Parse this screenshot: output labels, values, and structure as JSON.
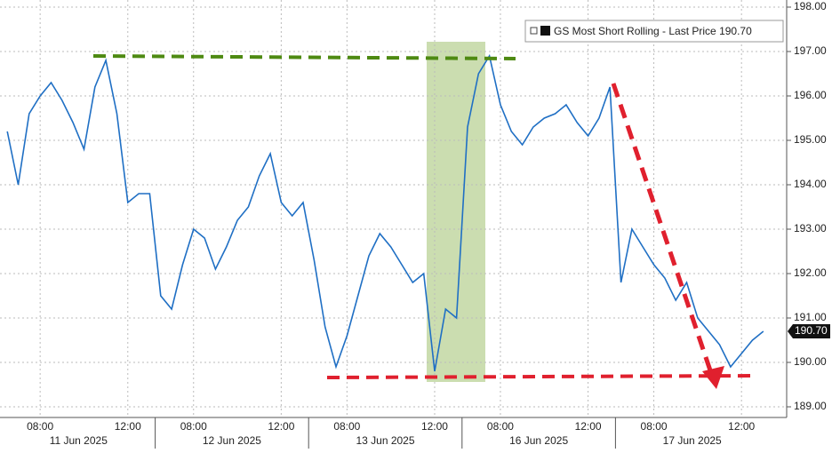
{
  "chart_data": {
    "type": "line",
    "categories": [
      null,
      null,
      null,
      "08:00",
      null,
      null,
      null,
      null,
      null,
      null,
      null,
      "12:00",
      null,
      null,
      null,
      null,
      null,
      "08:00",
      null,
      null,
      null,
      null,
      null,
      null,
      null,
      "12:00",
      null,
      null,
      null,
      null,
      null,
      "08:00",
      null,
      null,
      null,
      null,
      null,
      null,
      null,
      "12:00",
      null,
      null,
      null,
      null,
      null,
      "08:00",
      null,
      null,
      null,
      null,
      null,
      null,
      null,
      "12:00",
      null,
      null,
      null,
      null,
      null,
      "08:00",
      null,
      null,
      null,
      null,
      null,
      null,
      null,
      "12:00",
      null,
      null
    ],
    "date_labels": [
      "11 Jun 2025",
      "12 Jun 2025",
      "13 Jun 2025",
      "16 Jun 2025",
      "17 Jun 2025"
    ],
    "series": [
      {
        "name": "GS Most Short Rolling - Last Price",
        "color": "#1f6fc4",
        "values": [
          195.2,
          194.0,
          195.6,
          196.0,
          196.3,
          195.9,
          195.4,
          194.8,
          196.2,
          196.8,
          195.6,
          193.6,
          193.8,
          193.8,
          191.5,
          191.2,
          192.2,
          193.0,
          192.8,
          192.1,
          192.6,
          193.2,
          193.5,
          194.2,
          194.7,
          193.6,
          193.3,
          193.6,
          192.3,
          190.8,
          189.9,
          190.6,
          191.5,
          192.4,
          192.9,
          192.6,
          192.2,
          191.8,
          192.0,
          189.8,
          191.2,
          191.0,
          195.3,
          196.5,
          196.9,
          195.8,
          195.2,
          194.9,
          195.3,
          195.5,
          195.6,
          195.8,
          195.4,
          195.1,
          195.5,
          196.2,
          191.8,
          193.0,
          192.6,
          192.2,
          191.9,
          191.4,
          191.8,
          191.0,
          190.7,
          190.4,
          189.9,
          190.2,
          190.5,
          190.7
        ]
      }
    ],
    "last_price_label": "190.70",
    "ylim": [
      188.76,
      198.16
    ],
    "yticks": [
      {
        "value": 189,
        "label": "189.00"
      },
      {
        "value": 190,
        "label": "190.00"
      },
      {
        "value": 191,
        "label": "191.00"
      },
      {
        "value": 192,
        "label": "192.00"
      },
      {
        "value": 193,
        "label": "193.00"
      },
      {
        "value": 194,
        "label": "194.00"
      },
      {
        "value": 195,
        "label": "195.00"
      },
      {
        "value": 196,
        "label": "196.00"
      },
      {
        "value": 197,
        "label": "197.00"
      },
      {
        "value": 198,
        "label": "198.00"
      }
    ],
    "grid": true
  }
}
